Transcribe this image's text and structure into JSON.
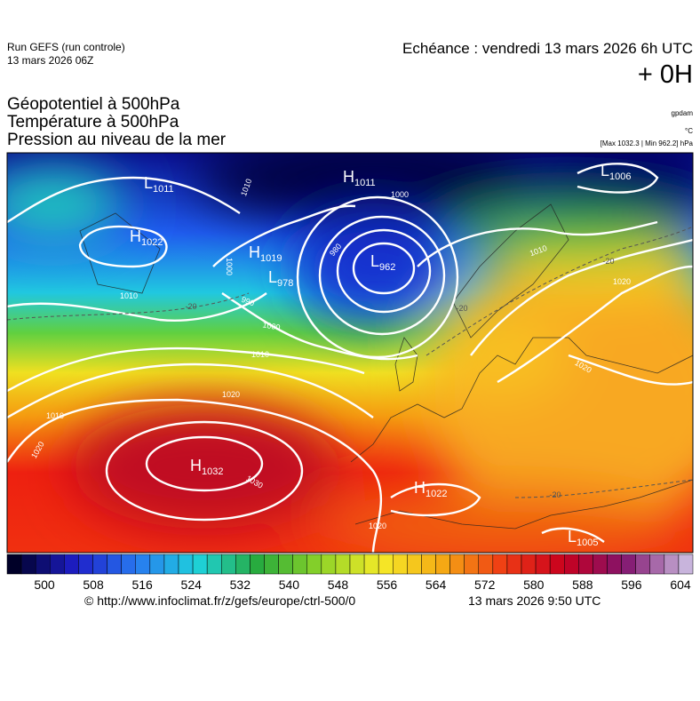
{
  "header": {
    "run": "Run GEFS (run controle)",
    "run_date": "13 mars 2026 06Z",
    "valid": "Echéance : vendredi 13 mars 2026 6h UTC",
    "lead": "+ 0H",
    "titles": [
      "Géopotentiel à 500hPa",
      "Température à 500hPa",
      "Pression au niveau de la mer"
    ],
    "units": [
      "gpdam",
      "°C",
      "[Max 1032.3 | Min 962.2] hPa"
    ]
  },
  "map": {
    "systems": [
      {
        "letter": "L",
        "value": 1011
      },
      {
        "letter": "H",
        "value": 1022
      },
      {
        "letter": "H",
        "value": 1011
      },
      {
        "letter": "H",
        "value": 1019
      },
      {
        "letter": "L",
        "value": 978
      },
      {
        "letter": "L",
        "value": 962
      },
      {
        "letter": "L",
        "value": 1006
      },
      {
        "letter": "H",
        "value": 1032
      },
      {
        "letter": "H",
        "value": 1022
      },
      {
        "letter": "L",
        "value": 1005
      }
    ],
    "isobar_labels": [
      1010,
      1000,
      980,
      1000,
      990,
      1010,
      1000,
      1010,
      1020,
      1010,
      1020,
      1030,
      1020,
      1010,
      1020,
      1020
    ],
    "temperature_labels": [
      -20,
      -20,
      -20,
      -20
    ]
  },
  "colorbar": {
    "ticks": [
      500,
      508,
      516,
      524,
      532,
      540,
      548,
      556,
      564,
      572,
      580,
      588,
      596,
      604
    ]
  },
  "footer": {
    "source": "© http://www.infoclimat.fr/z/gefs/europe/ctrl-500/0",
    "generated": "13 mars 2026  9:50 UTC"
  }
}
